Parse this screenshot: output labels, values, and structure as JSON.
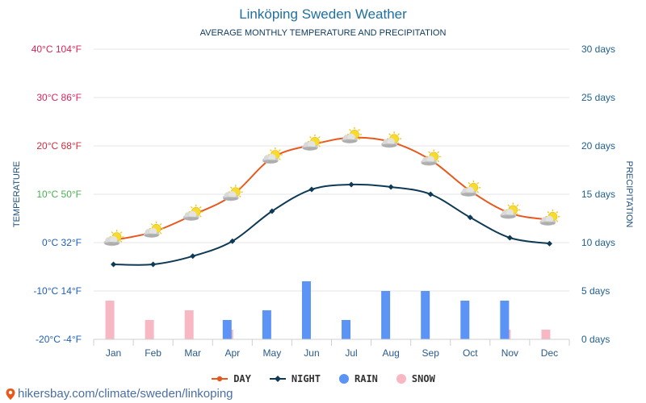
{
  "title": "Linköping Sweden Weather",
  "subtitle": "AVERAGE MONTHLY TEMPERATURE AND PRECIPITATION",
  "credit": "hikersbay.com/climate/sweden/linkoping",
  "legend": [
    {
      "key": "day",
      "label": "DAY"
    },
    {
      "key": "night",
      "label": "NIGHT"
    },
    {
      "key": "rain",
      "label": "RAIN"
    },
    {
      "key": "snow",
      "label": "SNOW"
    }
  ],
  "colors": {
    "day": "#e8581c",
    "night": "#0e3a55",
    "rain": "#5b94f5",
    "snow": "#f7b8c4",
    "right_axis": "#1f5f8f",
    "grid": "#e6e6e6",
    "month": "#2a5a8a"
  },
  "chart_data": {
    "type": "line",
    "title": "Linköping Sweden Weather",
    "subtitle": "AVERAGE MONTHLY TEMPERATURE AND PRECIPITATION",
    "categories": [
      "Jan",
      "Feb",
      "Mar",
      "Apr",
      "May",
      "Jun",
      "Jul",
      "Aug",
      "Sep",
      "Oct",
      "Nov",
      "Dec"
    ],
    "left_axis": {
      "label": "TEMPERATURE",
      "range": [
        -20,
        40
      ],
      "ticks": [
        {
          "value": 40,
          "label": "40°C 104°F",
          "color": "#d6245a"
        },
        {
          "value": 30,
          "label": "30°C 86°F",
          "color": "#d6245a"
        },
        {
          "value": 20,
          "label": "20°C 68°F",
          "color": "#cc2f3f"
        },
        {
          "value": 10,
          "label": "10°C 50°F",
          "color": "#4caf50"
        },
        {
          "value": 0,
          "label": "0°C 32°F",
          "color": "#1f5fb0"
        },
        {
          "value": -10,
          "label": "-10°C 14°F",
          "color": "#1f5fb0"
        },
        {
          "value": -20,
          "label": "-20°C -4°F",
          "color": "#1f5fb0"
        }
      ]
    },
    "right_axis": {
      "label": "PRECIPITATION",
      "range": [
        0,
        30
      ],
      "ticks": [
        {
          "value": 30,
          "label": "30 days"
        },
        {
          "value": 25,
          "label": "25 days"
        },
        {
          "value": 20,
          "label": "20 days"
        },
        {
          "value": 15,
          "label": "15 days"
        },
        {
          "value": 10,
          "label": "10 days"
        },
        {
          "value": 5,
          "label": "5 days"
        },
        {
          "value": 0,
          "label": "0 days"
        }
      ]
    },
    "series": [
      {
        "name": "DAY",
        "type": "line",
        "axis": "left",
        "values": [
          0.5,
          2.2,
          5.7,
          9.8,
          17.5,
          20.2,
          21.7,
          20.8,
          17.1,
          10.7,
          6.1,
          4.7
        ]
      },
      {
        "name": "NIGHT",
        "type": "line",
        "axis": "left",
        "values": [
          -4.5,
          -4.5,
          -2.8,
          0.3,
          6.5,
          11.0,
          12.0,
          11.5,
          10.0,
          5.2,
          1.0,
          -0.2
        ]
      },
      {
        "name": "RAIN",
        "type": "bar",
        "axis": "right",
        "values": [
          0,
          0,
          0,
          2,
          3,
          6,
          2,
          5,
          5,
          4,
          4,
          0
        ]
      },
      {
        "name": "SNOW",
        "type": "bar",
        "axis": "right",
        "values": [
          4,
          2,
          3,
          1,
          0,
          0,
          0,
          0,
          0,
          0,
          1,
          1
        ]
      }
    ]
  }
}
